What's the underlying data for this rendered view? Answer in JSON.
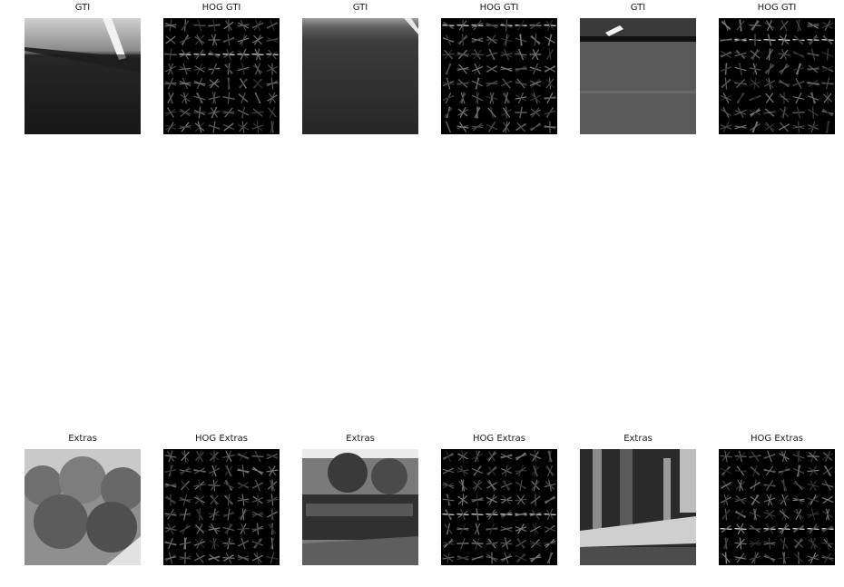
{
  "figure": {
    "rows": [
      {
        "panels": [
          {
            "title": "GTI",
            "kind": "photo",
            "scene": "road-upper-bright"
          },
          {
            "title": "HOG GTI",
            "kind": "hog",
            "scene": "hog-top-line"
          },
          {
            "title": "GTI",
            "kind": "photo",
            "scene": "road-dark"
          },
          {
            "title": "HOG GTI",
            "kind": "hog",
            "scene": "hog-top-line-2"
          },
          {
            "title": "GTI",
            "kind": "photo",
            "scene": "road-car-rear"
          },
          {
            "title": "HOG GTI",
            "kind": "hog",
            "scene": "hog-mid-line"
          }
        ]
      },
      {
        "panels": [
          {
            "title": "Extras",
            "kind": "photo",
            "scene": "bushes"
          },
          {
            "title": "HOG Extras",
            "kind": "hog",
            "scene": "hog-bushes"
          },
          {
            "title": "Extras",
            "kind": "photo",
            "scene": "fence-trees"
          },
          {
            "title": "HOG Extras",
            "kind": "hog",
            "scene": "hog-fence"
          },
          {
            "title": "Extras",
            "kind": "photo",
            "scene": "trees-road"
          },
          {
            "title": "HOG Extras",
            "kind": "hog",
            "scene": "hog-trees"
          }
        ]
      }
    ],
    "colors": {
      "background": "#ffffff",
      "hog_bg": "#000000",
      "title": "#1a1a1a"
    }
  }
}
